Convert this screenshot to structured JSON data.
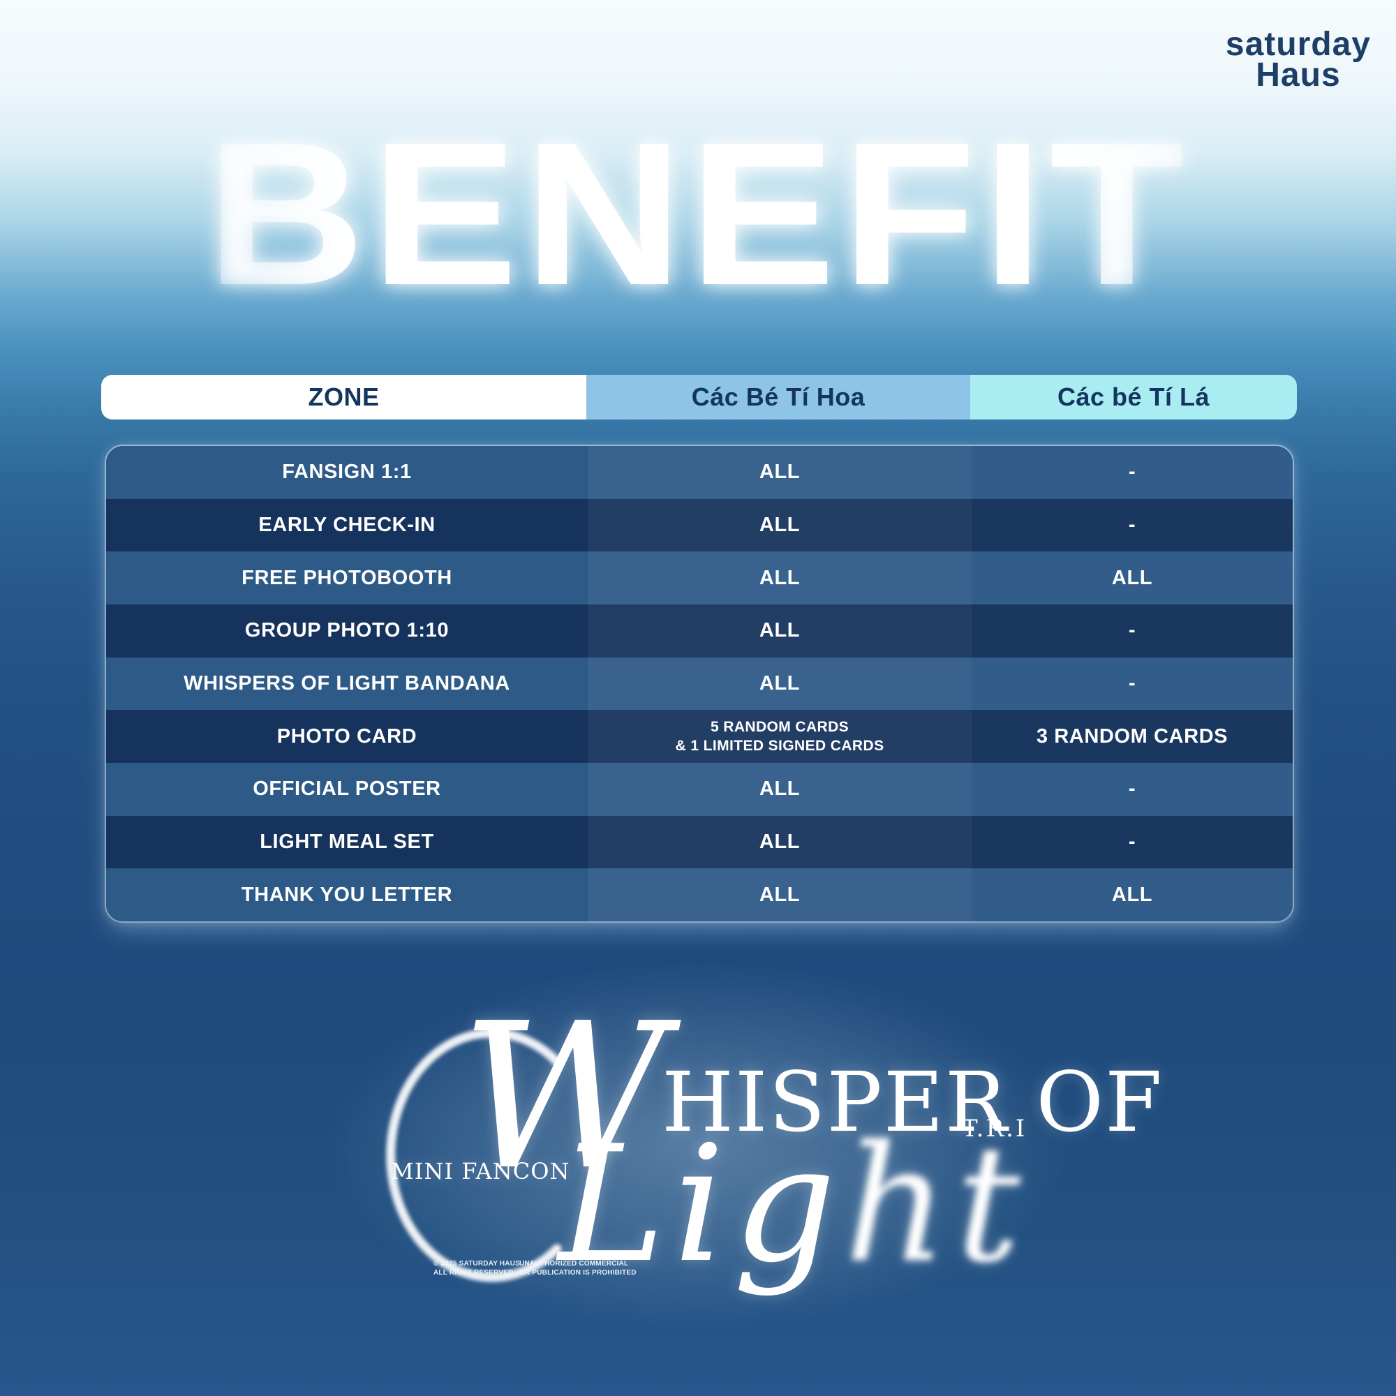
{
  "brand": {
    "line1": "saturday",
    "line2": "Haus"
  },
  "page_title": "BENEFIT",
  "table": {
    "headers": [
      "ZONE",
      "Các Bé Tí Hoa",
      "Các bé Tí Lá"
    ],
    "rows": [
      {
        "benefit": "FANSIGN 1:1",
        "hoa": "ALL",
        "la": "-"
      },
      {
        "benefit": "EARLY CHECK-IN",
        "hoa": "ALL",
        "la": "-"
      },
      {
        "benefit": "FREE PHOTOBOOTH",
        "hoa": "ALL",
        "la": "ALL"
      },
      {
        "benefit": "GROUP PHOTO 1:10",
        "hoa": "ALL",
        "la": "-"
      },
      {
        "benefit": "WHISPERS OF LIGHT BANDANA",
        "hoa": "ALL",
        "la": "-"
      },
      {
        "benefit": "PHOTO CARD",
        "hoa": [
          "5 RANDOM CARDS",
          "& 1 LIMITED SIGNED CARDS"
        ],
        "la": "3 RANDOM CARDS"
      },
      {
        "benefit": "OFFICIAL POSTER",
        "hoa": "ALL",
        "la": "-"
      },
      {
        "benefit": "LIGHT MEAL SET",
        "hoa": "ALL",
        "la": "-"
      },
      {
        "benefit": "THANK YOU LETTER",
        "hoa": "ALL",
        "la": "ALL"
      }
    ]
  },
  "event_logo": {
    "whisper_w": "W",
    "whisper_rest": "HISPER OF",
    "light_main": "Lig",
    "light_tail": "ht",
    "mini_fancon": "MINI FANCON",
    "artist": "T.R.I"
  },
  "footer": {
    "copyright": [
      "© 2025 SATURDAY HAUS",
      "ALL RIGHT RESERVED"
    ],
    "legal": [
      "UNAUTHORIZED COMMERCIAL",
      "OR PUBLICATION IS PROHIBITED"
    ]
  },
  "colors": {
    "header_zone_bg": "#ffffff",
    "header_hoa_bg": "#8ec4e8",
    "header_la_bg": "#a9ecf1",
    "header_text": "#14355e",
    "row_light": "#2e5a88",
    "row_dark": "#16335d",
    "brand_navy": "#1d3e66"
  }
}
